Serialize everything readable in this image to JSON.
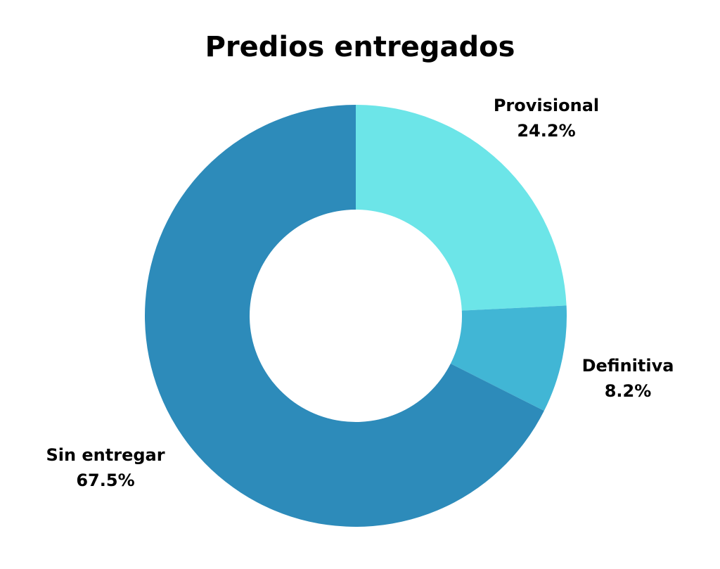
{
  "chart_data": {
    "type": "pie",
    "title": "Predios entregados",
    "donut": true,
    "slices": [
      {
        "label": "Provisional",
        "value": 24.2,
        "display": "24.2%",
        "color": "#6ce5e8"
      },
      {
        "label": "Definitiva",
        "value": 8.2,
        "display": "8.2%",
        "color": "#41b6d5"
      },
      {
        "label": "Sin entregar",
        "value": 67.5,
        "display": "67.5%",
        "color": "#2d8bba"
      }
    ]
  }
}
